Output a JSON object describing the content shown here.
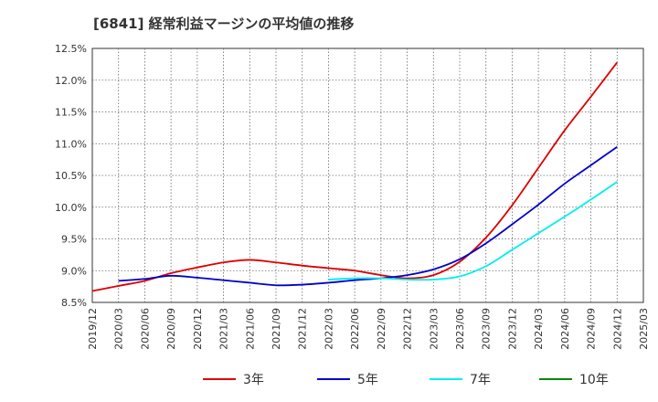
{
  "chart_data": {
    "type": "line",
    "title": "[6841]  経常利益マージンの平均値の推移",
    "xlabel": "",
    "ylabel": "",
    "x_ticks": [
      "2019/12",
      "2020/03",
      "2020/06",
      "2020/09",
      "2020/12",
      "2021/03",
      "2021/06",
      "2021/09",
      "2021/12",
      "2022/03",
      "2022/06",
      "2022/09",
      "2022/12",
      "2023/03",
      "2023/06",
      "2023/09",
      "2023/12",
      "2024/03",
      "2024/06",
      "2024/09",
      "2024/12",
      "2025/03"
    ],
    "y_ticks": [
      "8.5%",
      "9.0%",
      "9.5%",
      "10.0%",
      "10.5%",
      "11.0%",
      "11.5%",
      "12.0%",
      "12.5%"
    ],
    "ylim": [
      8.5,
      12.5
    ],
    "grid": true,
    "legend_position": "bottom",
    "series": [
      {
        "name": "3年",
        "color": "#dd0000",
        "x": [
          "2019/12",
          "2020/03",
          "2020/06",
          "2020/09",
          "2020/12",
          "2021/03",
          "2021/06",
          "2021/09",
          "2021/12",
          "2022/03",
          "2022/06",
          "2022/09",
          "2022/12",
          "2023/03",
          "2023/06",
          "2023/09",
          "2023/12",
          "2024/03",
          "2024/06",
          "2024/09",
          "2024/12"
        ],
        "values": [
          8.68,
          8.76,
          8.84,
          8.96,
          9.05,
          9.13,
          9.17,
          9.13,
          9.08,
          9.04,
          9.0,
          8.93,
          8.88,
          8.93,
          9.14,
          9.52,
          10.03,
          10.62,
          11.21,
          11.74,
          12.28
        ]
      },
      {
        "name": "5年",
        "color": "#0000cc",
        "x": [
          "2020/03",
          "2020/06",
          "2020/09",
          "2020/12",
          "2021/03",
          "2021/06",
          "2021/09",
          "2021/12",
          "2022/03",
          "2022/06",
          "2022/09",
          "2022/12",
          "2023/03",
          "2023/06",
          "2023/09",
          "2023/12",
          "2024/03",
          "2024/06",
          "2024/09",
          "2024/12"
        ],
        "values": [
          8.84,
          8.87,
          8.92,
          8.89,
          8.85,
          8.81,
          8.77,
          8.78,
          8.81,
          8.85,
          8.88,
          8.93,
          9.02,
          9.18,
          9.43,
          9.73,
          10.04,
          10.37,
          10.66,
          10.95
        ]
      },
      {
        "name": "7年",
        "color": "#00eeee",
        "x": [
          "2022/03",
          "2022/06",
          "2022/09",
          "2022/12",
          "2023/03",
          "2023/06",
          "2023/09",
          "2023/12",
          "2024/03",
          "2024/06",
          "2024/09",
          "2024/12"
        ],
        "values": [
          8.86,
          8.88,
          8.88,
          8.86,
          8.86,
          8.91,
          9.07,
          9.33,
          9.59,
          9.85,
          10.12,
          10.4
        ]
      },
      {
        "name": "10年",
        "color": "#008800",
        "x": [],
        "values": []
      }
    ]
  }
}
